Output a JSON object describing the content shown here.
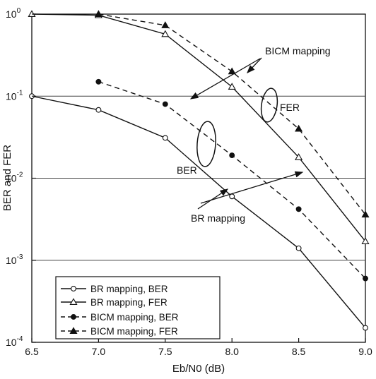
{
  "chart_data": {
    "type": "line",
    "xlabel": "Eb/N0 (dB)",
    "ylabel": "BER and FER",
    "xlim": [
      6.5,
      9.0
    ],
    "ylim": [
      0.0001,
      1
    ],
    "yscale": "log",
    "x_ticks": [
      "6.5",
      "7.0",
      "7.5",
      "8.0",
      "8.5",
      "9.0"
    ],
    "y_ticks": [
      {
        "base": "10",
        "exp": "0"
      },
      {
        "base": "10",
        "exp": "-1"
      },
      {
        "base": "10",
        "exp": "-2"
      },
      {
        "base": "10",
        "exp": "-3"
      },
      {
        "base": "10",
        "exp": "-4"
      }
    ],
    "grid": "horizontal lines at each decade",
    "legend_position": "bottom-left",
    "series": [
      {
        "name": "BR mapping, BER",
        "line": "solid",
        "marker": "open-circle",
        "x": [
          6.5,
          7.0,
          7.5,
          8.0,
          8.5,
          9.0
        ],
        "y": [
          0.1,
          0.068,
          0.031,
          0.006,
          0.0014,
          0.00015
        ]
      },
      {
        "name": "BR mapping, FER",
        "line": "solid",
        "marker": "open-triangle",
        "x": [
          6.5,
          7.0,
          7.5,
          8.0,
          8.5,
          9.0
        ],
        "y": [
          1.0,
          0.97,
          0.57,
          0.13,
          0.018,
          0.0017
        ]
      },
      {
        "name": "BICM mapping, BER",
        "line": "dashed",
        "marker": "filled-circle",
        "x": [
          7.0,
          7.5,
          8.0,
          8.5,
          9.0
        ],
        "y": [
          0.15,
          0.08,
          0.019,
          0.0042,
          0.0006
        ]
      },
      {
        "name": "BICM mapping, FER",
        "line": "dashed",
        "marker": "filled-triangle",
        "x": [
          7.0,
          7.5,
          8.0,
          8.5,
          9.0
        ],
        "y": [
          1.0,
          0.73,
          0.2,
          0.04,
          0.0036
        ]
      }
    ],
    "annotations": [
      "BICM mapping",
      "FER",
      "BER",
      "BR mapping"
    ]
  }
}
